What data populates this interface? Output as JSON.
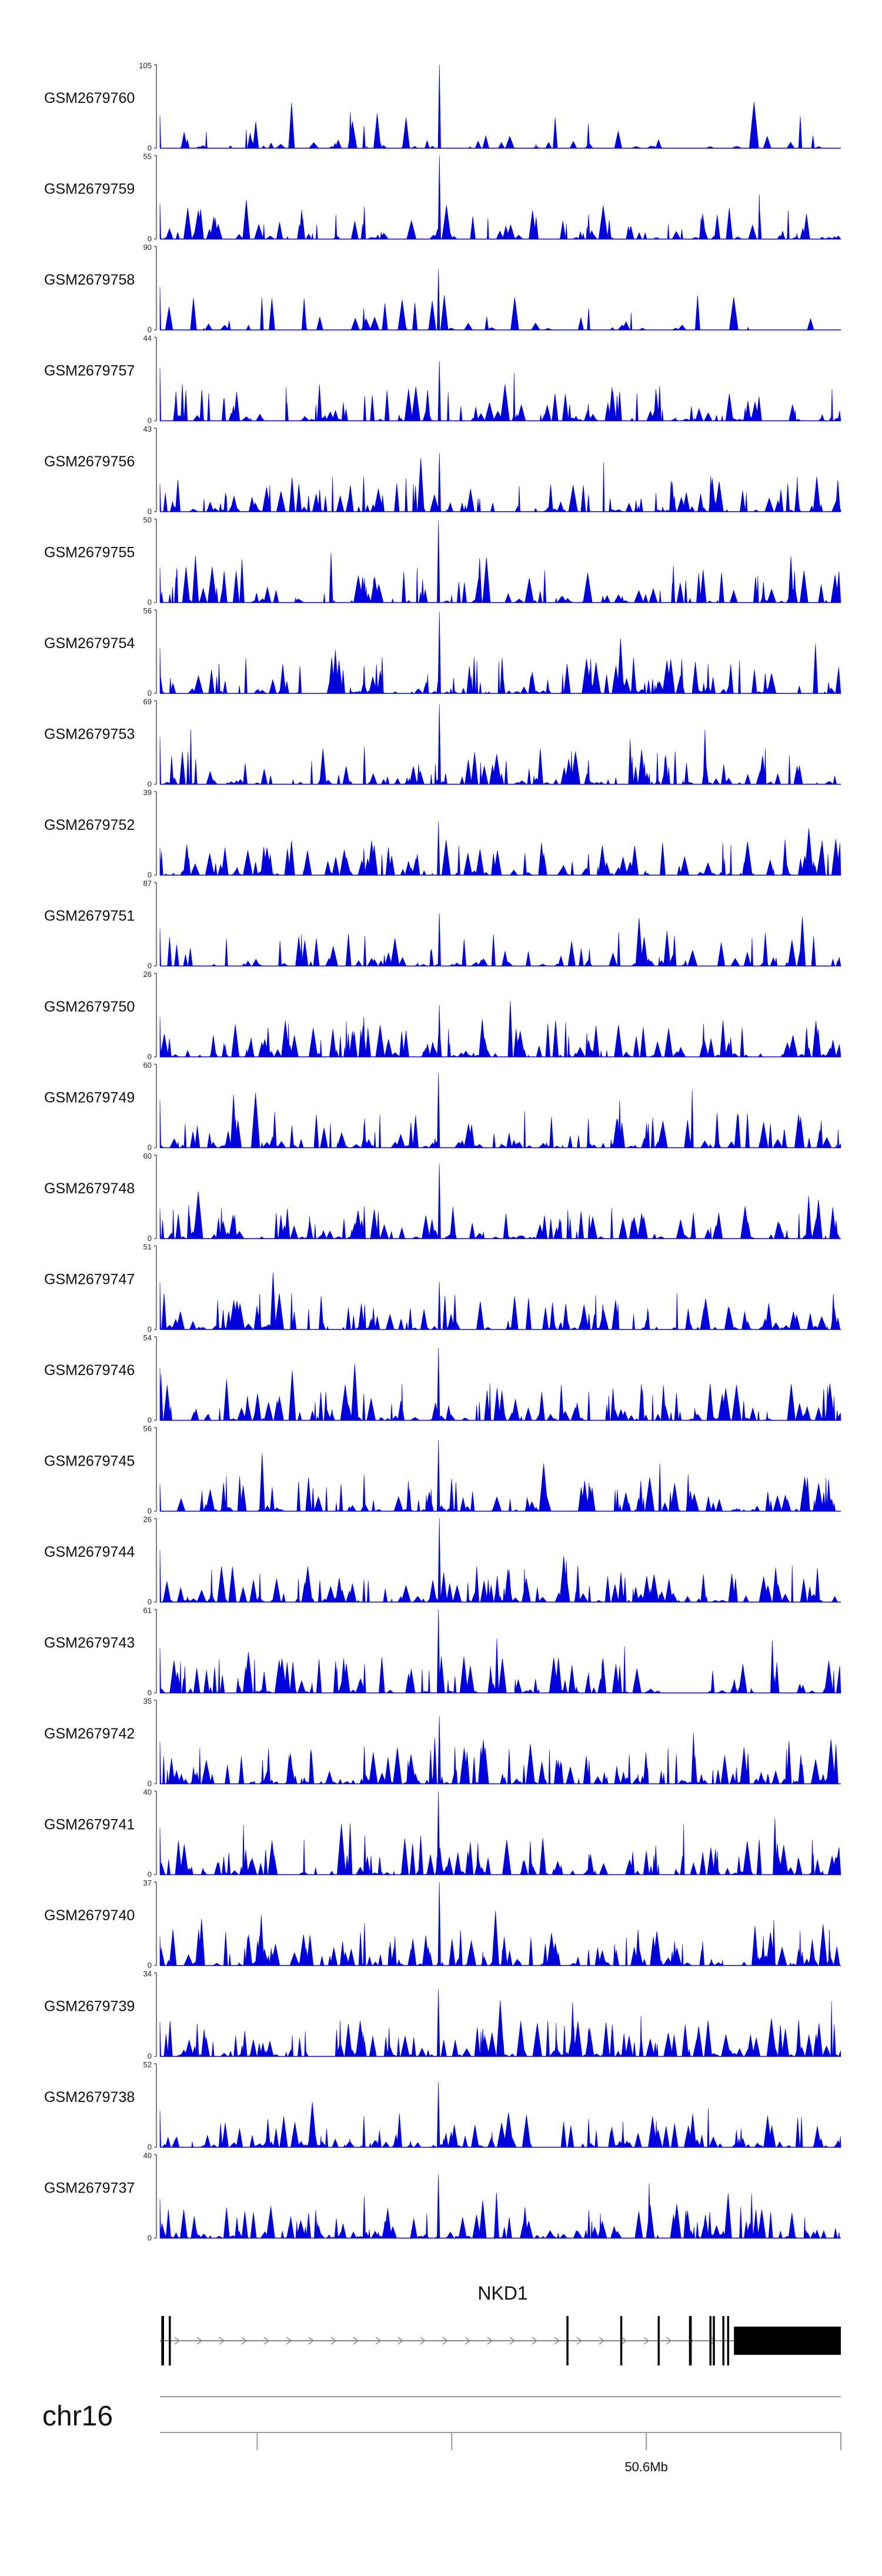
{
  "chart_data": {
    "type": "area",
    "chromosome": "chr16",
    "xrange": [
      50.55,
      50.62
    ],
    "ticks": [
      {
        "value": 50.56,
        "label": ""
      },
      {
        "value": 50.58,
        "label": ""
      },
      {
        "value": 50.6,
        "label": "50.6Mb"
      },
      {
        "value": 50.62,
        "label": ""
      },
      {
        "value": 50.64,
        "label": ""
      }
    ],
    "color": "#0000dd",
    "common_peaks": [
      {
        "x": 0.0,
        "h": 0.55,
        "w": 0.003
      },
      {
        "x": 0.3,
        "h": 0.45,
        "w": 0.004
      },
      {
        "x": 0.41,
        "h": 1.0,
        "w": 0.004
      },
      {
        "x": 0.63,
        "h": 0.3,
        "w": 0.004
      }
    ],
    "series": [
      {
        "name": "GSM2679760",
        "ymax": 105,
        "ymin": 0,
        "seed": 11,
        "density": 0.45
      },
      {
        "name": "GSM2679759",
        "ymax": 55,
        "ymin": 0,
        "seed": 23,
        "density": 0.9
      },
      {
        "name": "GSM2679758",
        "ymax": 90,
        "ymin": 0,
        "seed": 37,
        "density": 0.35
      },
      {
        "name": "GSM2679757",
        "ymax": 44,
        "ymin": 0,
        "seed": 41,
        "density": 1.0
      },
      {
        "name": "GSM2679756",
        "ymax": 43,
        "ymin": 0,
        "seed": 53,
        "density": 1.1
      },
      {
        "name": "GSM2679755",
        "ymax": 50,
        "ymin": 0,
        "seed": 67,
        "density": 1.0
      },
      {
        "name": "GSM2679754",
        "ymax": 56,
        "ymin": 0,
        "seed": 71,
        "density": 1.2
      },
      {
        "name": "GSM2679753",
        "ymax": 69,
        "ymin": 0,
        "seed": 83,
        "density": 1.0
      },
      {
        "name": "GSM2679752",
        "ymax": 39,
        "ymin": 0,
        "seed": 97,
        "density": 1.1
      },
      {
        "name": "GSM2679751",
        "ymax": 87,
        "ymin": 0,
        "seed": 101,
        "density": 0.8
      },
      {
        "name": "GSM2679750",
        "ymax": 26,
        "ymin": 0,
        "seed": 113,
        "density": 1.3
      },
      {
        "name": "GSM2679749",
        "ymax": 60,
        "ymin": 0,
        "seed": 127,
        "density": 1.1
      },
      {
        "name": "GSM2679748",
        "ymax": 60,
        "ymin": 0,
        "seed": 131,
        "density": 1.1
      },
      {
        "name": "GSM2679747",
        "ymax": 51,
        "ymin": 0,
        "seed": 149,
        "density": 1.1
      },
      {
        "name": "GSM2679746",
        "ymax": 54,
        "ymin": 0,
        "seed": 151,
        "density": 1.2
      },
      {
        "name": "GSM2679745",
        "ymax": 56,
        "ymin": 0,
        "seed": 163,
        "density": 1.1
      },
      {
        "name": "GSM2679744",
        "ymax": 26,
        "ymin": 0,
        "seed": 173,
        "density": 1.3
      },
      {
        "name": "GSM2679743",
        "ymax": 61,
        "ymin": 0,
        "seed": 181,
        "density": 1.0
      },
      {
        "name": "GSM2679742",
        "ymax": 35,
        "ymin": 0,
        "seed": 191,
        "density": 1.4
      },
      {
        "name": "GSM2679741",
        "ymax": 40,
        "ymin": 0,
        "seed": 193,
        "density": 1.3
      },
      {
        "name": "GSM2679740",
        "ymax": 37,
        "ymin": 0,
        "seed": 197,
        "density": 1.3
      },
      {
        "name": "GSM2679739",
        "ymax": 34,
        "ymin": 0,
        "seed": 199,
        "density": 1.4
      },
      {
        "name": "GSM2679738",
        "ymax": 52,
        "ymin": 0,
        "seed": 211,
        "density": 1.2
      },
      {
        "name": "GSM2679737",
        "ymax": 40,
        "ymin": 0,
        "seed": 223,
        "density": 1.3
      }
    ],
    "gene": {
      "name": "NKD1",
      "strand": "+",
      "exons": [
        {
          "start": 0.002,
          "end": 0.006,
          "type": "small"
        },
        {
          "start": 0.013,
          "end": 0.016,
          "type": "small"
        },
        {
          "start": 0.597,
          "end": 0.6,
          "type": "small"
        },
        {
          "start": 0.676,
          "end": 0.679,
          "type": "small"
        },
        {
          "start": 0.731,
          "end": 0.734,
          "type": "small"
        },
        {
          "start": 0.777,
          "end": 0.781,
          "type": "small"
        },
        {
          "start": 0.807,
          "end": 0.81,
          "type": "small"
        },
        {
          "start": 0.812,
          "end": 0.815,
          "type": "small"
        },
        {
          "start": 0.826,
          "end": 0.829,
          "type": "small"
        },
        {
          "start": 0.833,
          "end": 0.836,
          "type": "small"
        },
        {
          "start": 0.843,
          "end": 1.0,
          "type": "utr"
        }
      ]
    }
  }
}
